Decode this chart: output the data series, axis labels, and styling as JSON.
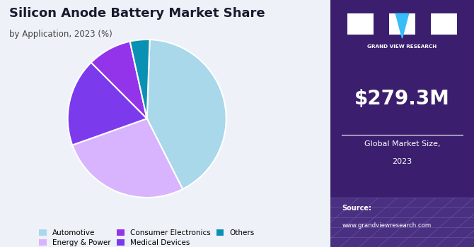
{
  "title": "Silicon Anode Battery Market Share",
  "subtitle": "by Application, 2023 (%)",
  "slices": [
    {
      "label": "Automotive",
      "value": 42,
      "color": "#a8d8ea"
    },
    {
      "label": "Energy & Power",
      "value": 27,
      "color": "#d8b4fe"
    },
    {
      "label": "Medical Devices",
      "value": 18,
      "color": "#7c3aed"
    },
    {
      "label": "Consumer Electronics",
      "value": 9,
      "color": "#9333ea"
    },
    {
      "label": "Others",
      "value": 4,
      "color": "#0891b2"
    }
  ],
  "startangle": 88,
  "panel_bg": "#3b1f6e",
  "panel_text_large": "$279.3M",
  "panel_text_sub1": "Global Market Size,",
  "panel_text_sub2": "2023",
  "panel_source": "Source:",
  "panel_url": "www.grandviewresearch.com",
  "chart_bg": "#eef2f8",
  "title_color": "#1a1a2e",
  "legend_colors": [
    "#a8d8ea",
    "#d8b4fe",
    "#9333ea",
    "#7c3aed",
    "#0891b2"
  ],
  "legend_labels": [
    "Automotive",
    "Energy & Power",
    "Consumer Electronics",
    "Medical Devices",
    "Others"
  ]
}
